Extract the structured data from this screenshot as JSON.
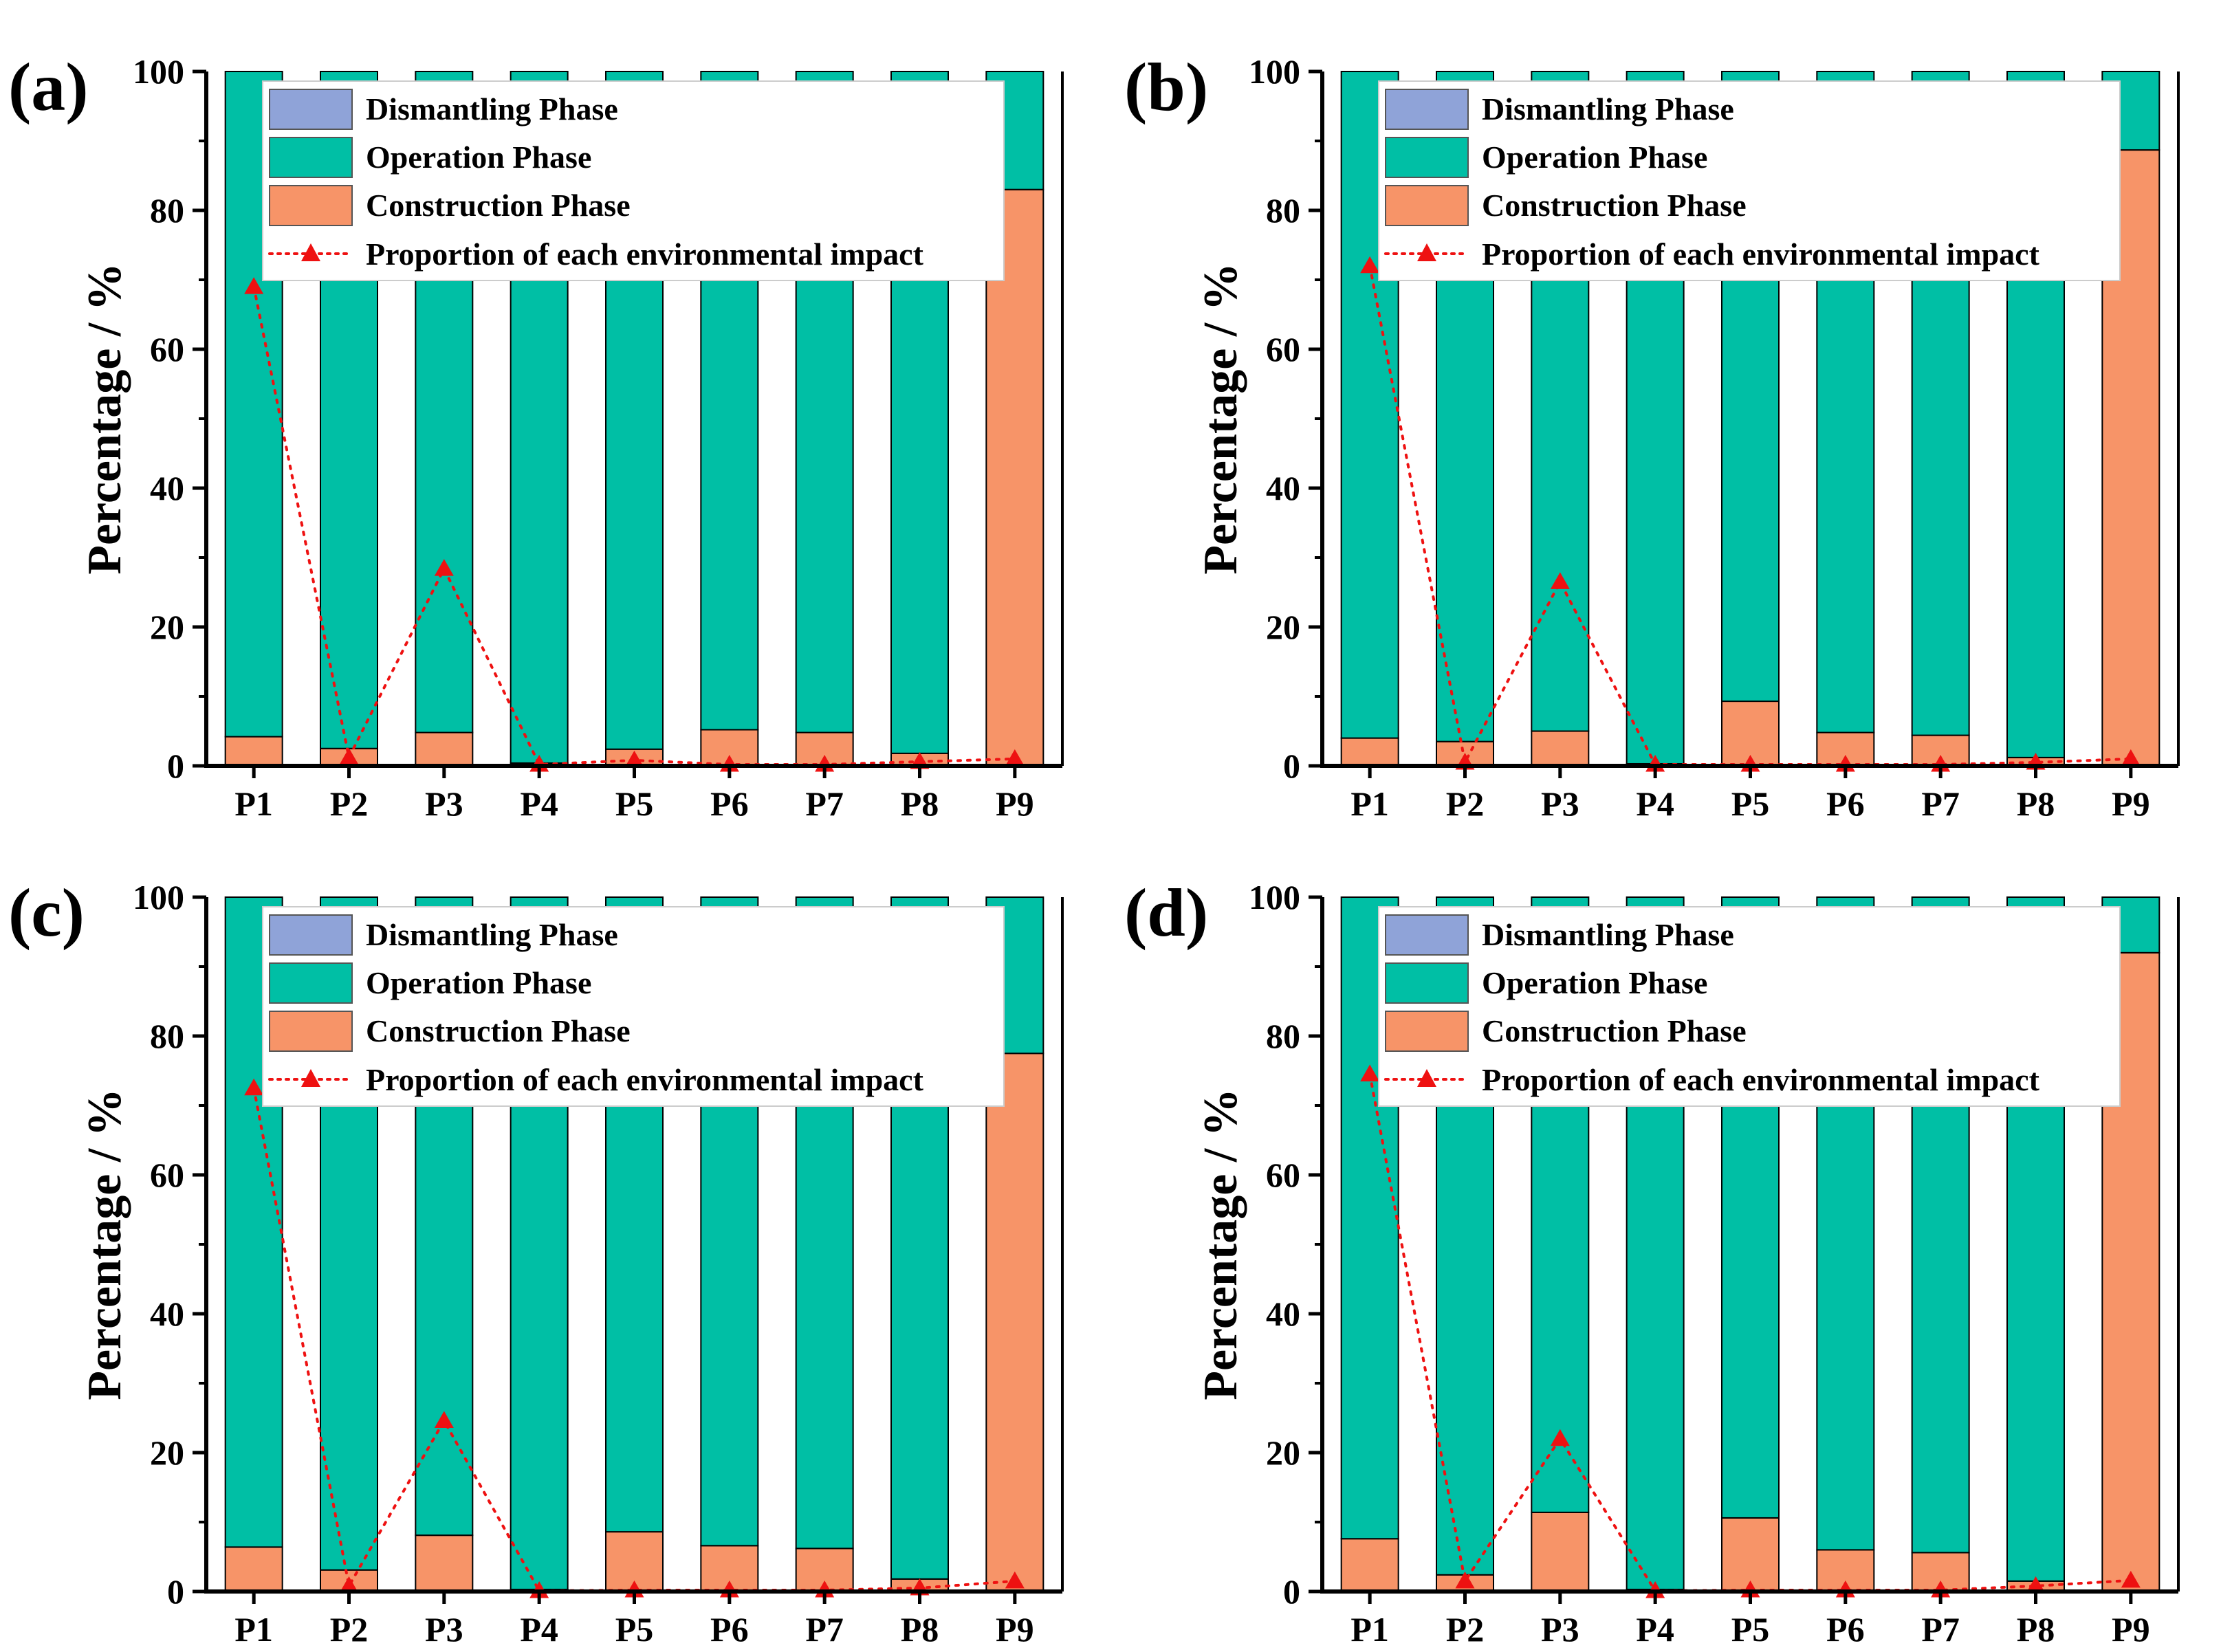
{
  "colors": {
    "dismantling": "#8FA3D8",
    "operation": "#00BFA5",
    "construction": "#F79468",
    "proportion": "#EE1111",
    "axis": "#000000"
  },
  "legend": {
    "dismantling_label": "Dismantling Phase",
    "operation_label": "Operation Phase",
    "construction_label": "Construction Phase",
    "proportion_label": "Proportion of each environmental impact"
  },
  "chart_data": [
    {
      "type": "bar",
      "panel_label": "(a)",
      "stacked": true,
      "ylabel": "Percentage / %",
      "ylim": [
        0,
        100
      ],
      "yticks": [
        "0",
        "20",
        "40",
        "60",
        "80",
        "100"
      ],
      "categories": [
        "P1",
        "P2",
        "P3",
        "P4",
        "P5",
        "P6",
        "P7",
        "P8",
        "P9"
      ],
      "series": [
        {
          "name": "Construction Phase",
          "values": [
            4.2,
            2.5,
            4.8,
            0.4,
            2.4,
            5.2,
            4.8,
            1.8,
            83.0
          ]
        },
        {
          "name": "Operation Phase",
          "values": [
            95.8,
            97.5,
            95.2,
            99.6,
            97.6,
            94.8,
            95.2,
            98.2,
            17.0
          ]
        },
        {
          "name": "Dismantling Phase",
          "values": [
            0,
            0,
            0,
            0,
            0,
            0,
            0,
            0,
            0
          ]
        }
      ],
      "line": {
        "name": "Proportion of each environmental impact",
        "values": [
          69.0,
          1.2,
          28.4,
          0.2,
          0.8,
          0.2,
          0.2,
          0.6,
          1.0
        ]
      }
    },
    {
      "type": "bar",
      "panel_label": "(b)",
      "stacked": true,
      "ylabel": "Percentage / %",
      "ylim": [
        0,
        100
      ],
      "yticks": [
        "0",
        "20",
        "40",
        "60",
        "80",
        "100"
      ],
      "categories": [
        "P1",
        "P2",
        "P3",
        "P4",
        "P5",
        "P6",
        "P7",
        "P8",
        "P9"
      ],
      "series": [
        {
          "name": "Construction Phase",
          "values": [
            4.0,
            3.5,
            5.0,
            0.3,
            9.3,
            4.8,
            4.4,
            1.2,
            88.7
          ]
        },
        {
          "name": "Operation Phase",
          "values": [
            96.0,
            96.5,
            95.0,
            99.7,
            90.7,
            95.2,
            95.6,
            98.8,
            11.3
          ]
        },
        {
          "name": "Dismantling Phase",
          "values": [
            0,
            0,
            0,
            0,
            0,
            0,
            0,
            0,
            0
          ]
        }
      ],
      "line": {
        "name": "Proportion of each environmental impact",
        "values": [
          72.0,
          0.5,
          26.5,
          0.2,
          0.2,
          0.2,
          0.2,
          0.5,
          1.0
        ]
      }
    },
    {
      "type": "bar",
      "panel_label": "(c)",
      "stacked": true,
      "ylabel": "Percentage / %",
      "ylim": [
        0,
        100
      ],
      "yticks": [
        "0",
        "20",
        "40",
        "60",
        "80",
        "100"
      ],
      "categories": [
        "P1",
        "P2",
        "P3",
        "P4",
        "P5",
        "P6",
        "P7",
        "P8",
        "P9"
      ],
      "series": [
        {
          "name": "Construction Phase",
          "values": [
            6.4,
            3.1,
            8.1,
            0.3,
            8.6,
            6.6,
            6.2,
            1.8,
            77.5
          ]
        },
        {
          "name": "Operation Phase",
          "values": [
            93.6,
            96.9,
            91.9,
            99.7,
            91.4,
            93.4,
            93.8,
            98.2,
            22.5
          ]
        },
        {
          "name": "Dismantling Phase",
          "values": [
            0,
            0,
            0,
            0,
            0,
            0,
            0,
            0,
            0
          ]
        }
      ],
      "line": {
        "name": "Proportion of each environmental impact",
        "values": [
          72.5,
          0.8,
          24.6,
          0.1,
          0.2,
          0.2,
          0.2,
          0.5,
          1.5
        ]
      }
    },
    {
      "type": "bar",
      "panel_label": "(d)",
      "stacked": true,
      "ylabel": "Percentage / %",
      "ylim": [
        0,
        100
      ],
      "yticks": [
        "0",
        "20",
        "40",
        "60",
        "80",
        "100"
      ],
      "categories": [
        "P1",
        "P2",
        "P3",
        "P4",
        "P5",
        "P6",
        "P7",
        "P8",
        "P9"
      ],
      "series": [
        {
          "name": "Construction Phase",
          "values": [
            7.6,
            2.4,
            11.4,
            0.3,
            10.6,
            6.0,
            5.6,
            1.5,
            92.0
          ]
        },
        {
          "name": "Operation Phase",
          "values": [
            92.4,
            97.6,
            88.6,
            99.7,
            89.4,
            94.0,
            94.4,
            98.5,
            8.0
          ]
        },
        {
          "name": "Dismantling Phase",
          "values": [
            0,
            0,
            0,
            0,
            0,
            0,
            0,
            0,
            0
          ]
        }
      ],
      "line": {
        "name": "Proportion of each environmental impact",
        "values": [
          74.5,
          1.5,
          22.0,
          0.1,
          0.2,
          0.2,
          0.2,
          0.8,
          1.6
        ]
      }
    }
  ]
}
